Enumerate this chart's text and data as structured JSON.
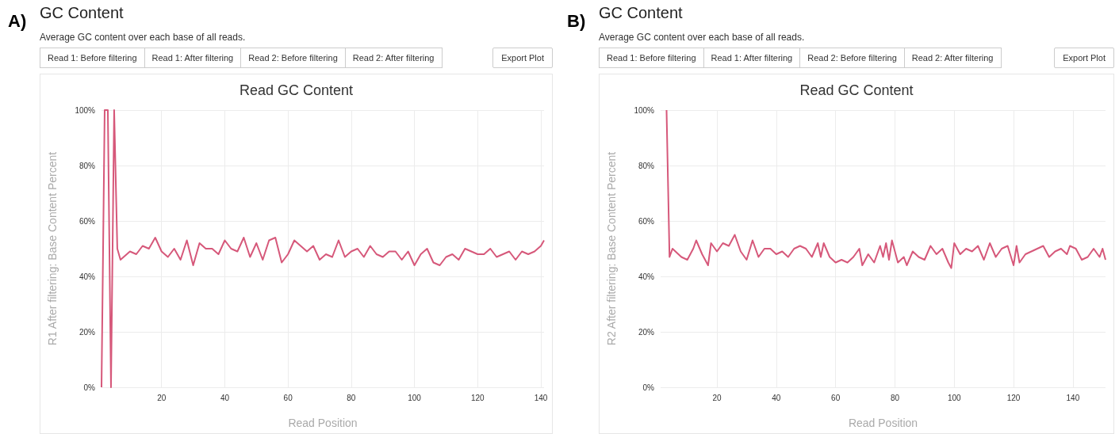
{
  "chart_data": [
    {
      "type": "line",
      "title": "Read GC Content",
      "xlabel": "Read Position",
      "ylabel": "R1 After filtering: Base Content Percent",
      "annotations": [
        "A)",
        "GC Content",
        "Average GC content over each base of all reads.",
        "Read 1: Before filtering",
        "Read 1: After filtering",
        "Read 2: Before filtering",
        "Read 2: After filtering",
        "Export Plot"
      ],
      "xlim": [
        1,
        141
      ],
      "xticks": [
        20,
        40,
        60,
        80,
        100,
        120,
        140
      ],
      "ylim": [
        0,
        100
      ],
      "yticks": [
        {
          "value": 0,
          "label": "0%"
        },
        {
          "value": 20,
          "label": "20%"
        },
        {
          "value": 40,
          "label": "40%"
        },
        {
          "value": 60,
          "label": "60%"
        },
        {
          "value": 80,
          "label": "80%"
        },
        {
          "value": 100,
          "label": "100%"
        }
      ],
      "grid": true,
      "marker": "none",
      "series": [
        {
          "color": "#d6587a",
          "x": [
            1,
            2,
            3,
            4,
            5,
            6,
            7,
            8,
            10,
            12,
            14,
            16,
            18,
            20,
            22,
            24,
            26,
            28,
            30,
            32,
            34,
            36,
            38,
            40,
            42,
            44,
            46,
            48,
            50,
            52,
            54,
            56,
            58,
            60,
            62,
            64,
            66,
            68,
            70,
            72,
            74,
            76,
            78,
            80,
            82,
            84,
            86,
            88,
            90,
            92,
            94,
            96,
            98,
            100,
            102,
            104,
            106,
            108,
            110,
            112,
            114,
            116,
            118,
            120,
            122,
            124,
            126,
            128,
            130,
            132,
            134,
            136,
            138,
            140,
            141
          ],
          "values": [
            0,
            100,
            100,
            0,
            100,
            50,
            46,
            47,
            49,
            48,
            51,
            50,
            54,
            49,
            47,
            50,
            46,
            53,
            44,
            52,
            50,
            50,
            48,
            53,
            50,
            49,
            54,
            47,
            52,
            46,
            53,
            54,
            45,
            48,
            53,
            51,
            49,
            51,
            46,
            48,
            47,
            53,
            47,
            49,
            50,
            47,
            51,
            48,
            47,
            49,
            49,
            46,
            49,
            44,
            48,
            50,
            45,
            44,
            47,
            48,
            46,
            50,
            49,
            48,
            48,
            50,
            47,
            48,
            49,
            46,
            49,
            48,
            49,
            51,
            53
          ]
        }
      ]
    },
    {
      "type": "line",
      "title": "Read GC Content",
      "xlabel": "Read Position",
      "ylabel": "R2 After filtering: Base Content Percent",
      "annotations": [
        "B)",
        "GC Content",
        "Average GC content over each base of all reads.",
        "Read 1: Before filtering",
        "Read 1: After filtering",
        "Read 2: Before filtering",
        "Read 2: After filtering",
        "Export Plot"
      ],
      "xlim": [
        1,
        151
      ],
      "xticks": [
        20,
        40,
        60,
        80,
        100,
        120,
        140
      ],
      "ylim": [
        0,
        100
      ],
      "yticks": [
        {
          "value": 0,
          "label": "0%"
        },
        {
          "value": 20,
          "label": "20%"
        },
        {
          "value": 40,
          "label": "40%"
        },
        {
          "value": 60,
          "label": "60%"
        },
        {
          "value": 80,
          "label": "80%"
        },
        {
          "value": 100,
          "label": "100%"
        }
      ],
      "grid": true,
      "marker": "none",
      "series": [
        {
          "color": "#d6587a",
          "x": [
            3,
            4,
            5,
            6,
            8,
            10,
            12,
            13,
            15,
            17,
            18,
            20,
            22,
            24,
            26,
            28,
            30,
            32,
            34,
            36,
            38,
            40,
            42,
            44,
            46,
            48,
            50,
            52,
            54,
            55,
            56,
            58,
            60,
            62,
            64,
            66,
            68,
            69,
            71,
            73,
            75,
            76,
            77,
            78,
            79,
            81,
            83,
            84,
            86,
            88,
            90,
            92,
            94,
            96,
            98,
            99,
            100,
            102,
            104,
            106,
            108,
            110,
            112,
            114,
            116,
            118,
            120,
            121,
            122,
            124,
            126,
            128,
            130,
            132,
            134,
            136,
            138,
            139,
            141,
            143,
            145,
            147,
            149,
            150,
            151
          ],
          "values": [
            100,
            47,
            50,
            49,
            47,
            46,
            50,
            53,
            48,
            44,
            52,
            49,
            52,
            51,
            55,
            49,
            46,
            53,
            47,
            50,
            50,
            48,
            49,
            47,
            50,
            51,
            50,
            47,
            52,
            47,
            52,
            47,
            45,
            46,
            45,
            47,
            50,
            44,
            48,
            45,
            51,
            47,
            52,
            46,
            53,
            45,
            47,
            44,
            49,
            47,
            46,
            51,
            48,
            50,
            45,
            43,
            52,
            48,
            50,
            49,
            51,
            46,
            52,
            47,
            50,
            51,
            44,
            51,
            45,
            48,
            49,
            50,
            51,
            47,
            49,
            50,
            48,
            51,
            50,
            46,
            47,
            50,
            47,
            50,
            46
          ]
        }
      ]
    }
  ]
}
